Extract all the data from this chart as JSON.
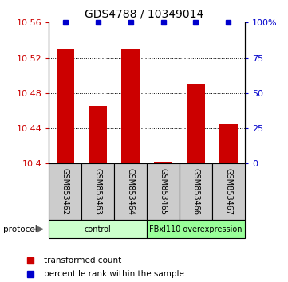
{
  "title": "GDS4788 / 10349014",
  "samples": [
    "GSM853462",
    "GSM853463",
    "GSM853464",
    "GSM853465",
    "GSM853466",
    "GSM853467"
  ],
  "bar_values": [
    10.53,
    10.465,
    10.53,
    10.402,
    10.49,
    10.445
  ],
  "percentile_values": [
    100,
    100,
    100,
    100,
    100,
    100
  ],
  "ylim_left": [
    10.4,
    10.56
  ],
  "ylim_right": [
    0,
    100
  ],
  "yticks_left": [
    10.4,
    10.44,
    10.48,
    10.52,
    10.56
  ],
  "yticks_right": [
    0,
    25,
    50,
    75,
    100
  ],
  "ytick_labels_right": [
    "0",
    "25",
    "50",
    "75",
    "100%"
  ],
  "bar_color": "#cc0000",
  "dot_color": "#0000cc",
  "bar_width": 0.55,
  "groups": [
    {
      "label": "control",
      "n_samples": 3,
      "color": "#ccffcc"
    },
    {
      "label": "FBxl110 overexpression",
      "n_samples": 3,
      "color": "#99ff99"
    }
  ],
  "protocol_label": "protocol",
  "legend_bar_label": "transformed count",
  "legend_dot_label": "percentile rank within the sample",
  "sample_box_color": "#cccccc",
  "title_fontsize": 10,
  "axis_fontsize": 8,
  "label_fontsize": 7,
  "legend_fontsize": 7.5
}
